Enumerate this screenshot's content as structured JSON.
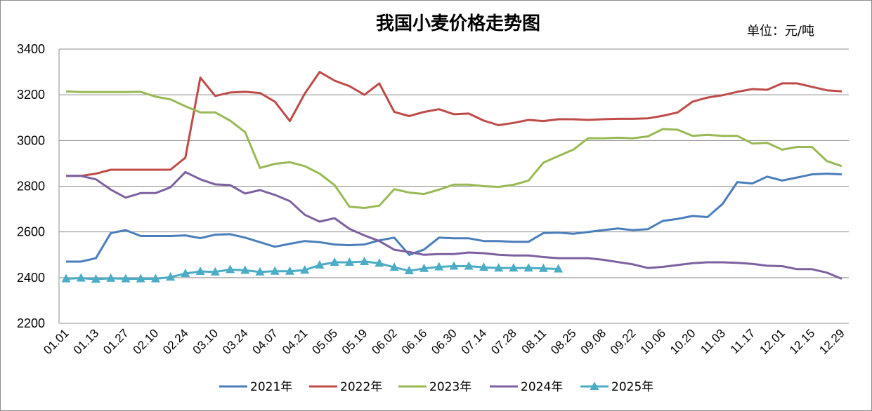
{
  "chart_data": {
    "type": "line",
    "title": "我国小麦价格走势图",
    "unit_label": "单位：元/吨",
    "ylim": [
      2200,
      3400
    ],
    "yticks": [
      2200,
      2400,
      2600,
      2800,
      3000,
      3200,
      3400
    ],
    "x_count": 53,
    "x_tick_labels": [
      "01.01",
      "01.13",
      "01.27",
      "02.10",
      "02.24",
      "03.10",
      "03.24",
      "04.07",
      "04.21",
      "05.05",
      "05.19",
      "06.02",
      "06.16",
      "06.30",
      "07.14",
      "07.28",
      "08.11",
      "08.25",
      "09.08",
      "09.22",
      "10.06",
      "10.20",
      "11.03",
      "11.17",
      "12.01",
      "12.15",
      "12.29"
    ],
    "grid": true,
    "legend_position": "bottom",
    "series": [
      {
        "name": "2021年",
        "color": "#4a7ebb",
        "marker": "none",
        "values": [
          2470,
          2470,
          2485,
          2595,
          2608,
          2582,
          2582,
          2582,
          2585,
          2573,
          2588,
          2590,
          2575,
          2555,
          2535,
          2548,
          2560,
          2555,
          2545,
          2542,
          2545,
          2563,
          2575,
          2500,
          2523,
          2575,
          2572,
          2572,
          2560,
          2560,
          2557,
          2557,
          2595,
          2597,
          2592,
          2600,
          2608,
          2615,
          2608,
          2612,
          2648,
          2657,
          2670,
          2665,
          2722,
          2818,
          2812,
          2842,
          2825,
          2838,
          2852,
          2855,
          2852
        ]
      },
      {
        "name": "2022年",
        "color": "#be4b48",
        "marker": "none",
        "values": [
          2845,
          2845,
          2855,
          2872,
          2872,
          2872,
          2872,
          2872,
          2925,
          3275,
          3195,
          3210,
          3213,
          3208,
          3170,
          3085,
          3205,
          3300,
          3262,
          3238,
          3200,
          3250,
          3125,
          3107,
          3125,
          3137,
          3115,
          3118,
          3087,
          3067,
          3077,
          3090,
          3085,
          3093,
          3093,
          3090,
          3093,
          3095,
          3095,
          3097,
          3108,
          3123,
          3170,
          3188,
          3198,
          3213,
          3225,
          3222,
          3250,
          3250,
          3235,
          3220,
          3215
        ]
      },
      {
        "name": "2023年",
        "color": "#98b954",
        "marker": "none",
        "values": [
          3215,
          3212,
          3212,
          3212,
          3212,
          3213,
          3192,
          3180,
          3150,
          3123,
          3123,
          3087,
          3037,
          2880,
          2898,
          2905,
          2888,
          2855,
          2805,
          2710,
          2705,
          2715,
          2787,
          2772,
          2766,
          2785,
          2807,
          2807,
          2800,
          2797,
          2806,
          2825,
          2903,
          2932,
          2960,
          3010,
          3010,
          3012,
          3010,
          3018,
          3050,
          3047,
          3020,
          3025,
          3020,
          3020,
          2987,
          2990,
          2960,
          2972,
          2972,
          2910,
          2888
        ]
      },
      {
        "name": "2024年",
        "color": "#7d60a0",
        "marker": "none",
        "values": [
          2845,
          2845,
          2830,
          2785,
          2750,
          2770,
          2770,
          2795,
          2862,
          2830,
          2808,
          2805,
          2768,
          2783,
          2762,
          2735,
          2675,
          2645,
          2660,
          2613,
          2585,
          2560,
          2522,
          2512,
          2500,
          2503,
          2503,
          2510,
          2507,
          2500,
          2497,
          2497,
          2490,
          2485,
          2485,
          2485,
          2478,
          2468,
          2458,
          2442,
          2447,
          2455,
          2463,
          2467,
          2467,
          2465,
          2460,
          2452,
          2450,
          2437,
          2437,
          2422,
          2395
        ]
      },
      {
        "name": "2025年",
        "color": "#4bacc6",
        "marker": "triangle",
        "values": [
          2395,
          2398,
          2393,
          2397,
          2395,
          2395,
          2395,
          2402,
          2418,
          2427,
          2425,
          2435,
          2432,
          2425,
          2428,
          2428,
          2433,
          2455,
          2467,
          2467,
          2470,
          2463,
          2445,
          2430,
          2440,
          2447,
          2450,
          2450,
          2445,
          2442,
          2442,
          2442,
          2440,
          2438
        ]
      }
    ]
  }
}
